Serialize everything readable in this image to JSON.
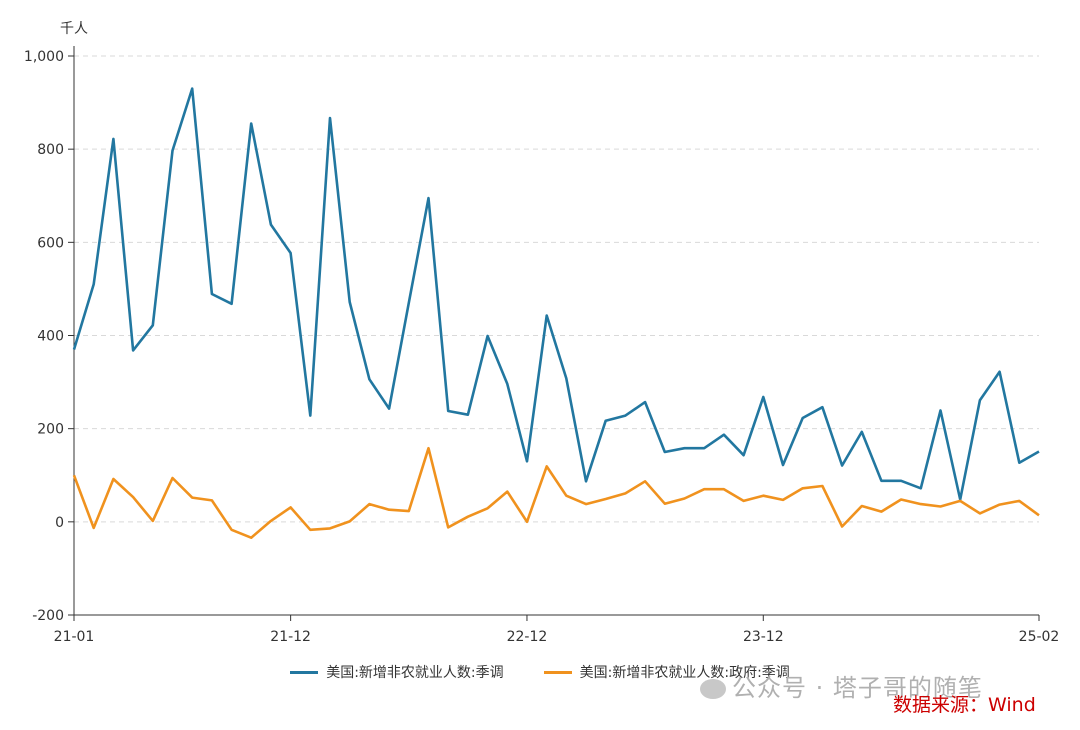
{
  "chart_data": {
    "type": "line",
    "ylabel": "千人",
    "ylim": [
      -200,
      1000
    ],
    "yticks": [
      -200,
      0,
      200,
      400,
      600,
      800,
      1000
    ],
    "ytick_labels": [
      "-200",
      "0",
      "200",
      "400",
      "600",
      "800",
      "1,000"
    ],
    "xticks": [
      0,
      11,
      23,
      35,
      49
    ],
    "xtick_labels": [
      "21-01",
      "21-12",
      "22-12",
      "23-12",
      "25-02"
    ],
    "grid": "horizontal-dashed",
    "legend_position": "bottom",
    "series": [
      {
        "name": "美国:新增非农就业人数:季调",
        "color": "#2277a0",
        "values": [
          370,
          510,
          822,
          368,
          422,
          797,
          930,
          489,
          468,
          855,
          638,
          577,
          228,
          867,
          472,
          306,
          243,
          470,
          695,
          238,
          230,
          399,
          296,
          130,
          443,
          308,
          87,
          217,
          228,
          257,
          150,
          158,
          158,
          187,
          143,
          268,
          122,
          223,
          246,
          121,
          193,
          88,
          88,
          72,
          239,
          48,
          261,
          322,
          127,
          151
        ]
      },
      {
        "name": "美国:新增非农就业人数:政府:季调",
        "color": "#f0921e",
        "values": [
          100,
          -13,
          92,
          53,
          2,
          94,
          52,
          46,
          -17,
          -34,
          2,
          31,
          -17,
          -14,
          1,
          38,
          26,
          23,
          158,
          -12,
          11,
          29,
          65,
          0,
          119,
          56,
          38,
          49,
          61,
          87,
          39,
          50,
          70,
          70,
          45,
          56,
          47,
          72,
          77,
          -10,
          34,
          22,
          48,
          38,
          33,
          45,
          18,
          37,
          45,
          14
        ]
      }
    ]
  },
  "watermark": {
    "text": "公众号 · 塔子哥的随笔",
    "icon": "wechat-icon"
  },
  "source": "数据来源：Wind"
}
